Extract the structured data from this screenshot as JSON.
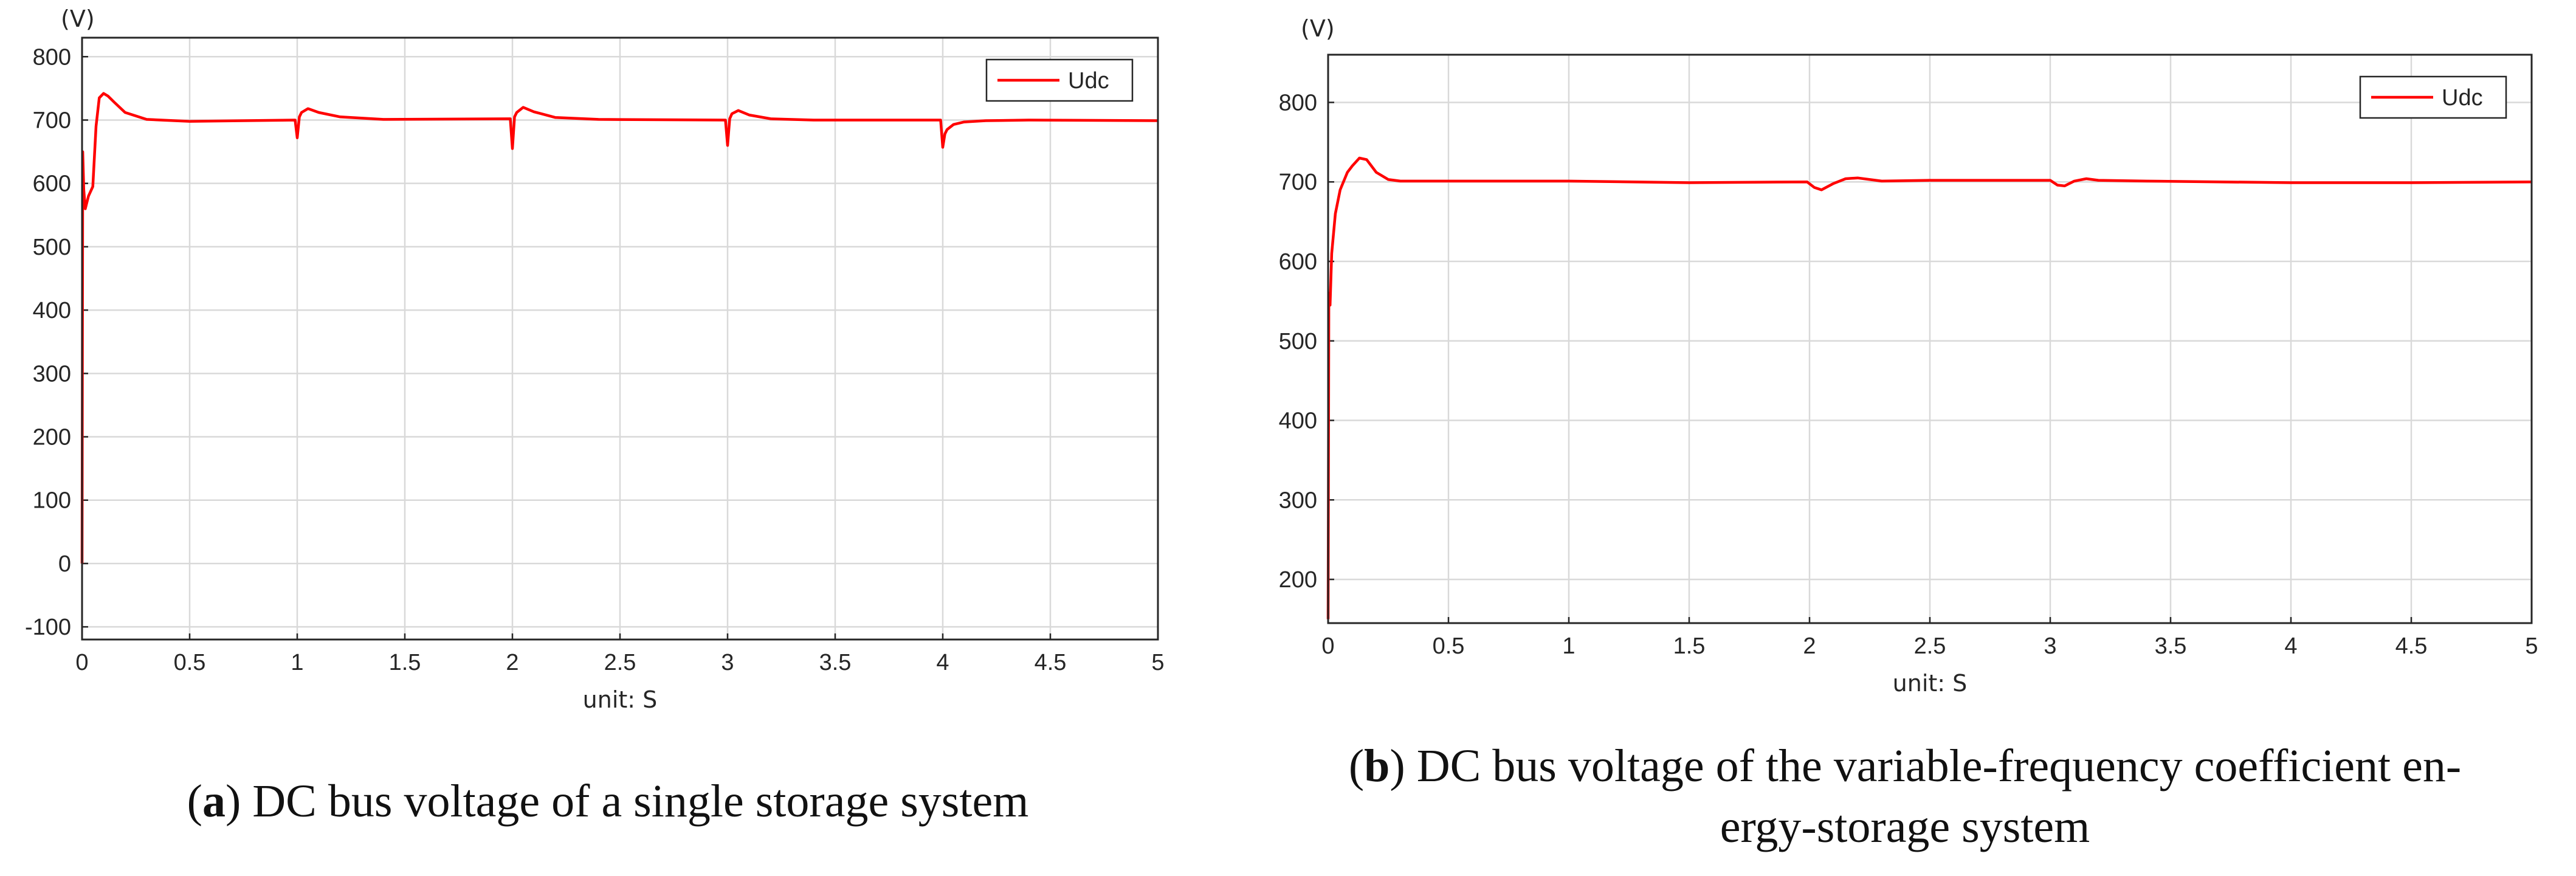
{
  "chart_data": [
    {
      "id": "a",
      "type": "line",
      "caption_letter": "a",
      "caption_text": "DC bus voltage of a single storage system",
      "y_unit_label": "(V)",
      "xlabel": "unit: S",
      "xlim": [
        0,
        5
      ],
      "ylim": [
        -120,
        830
      ],
      "xticks": [
        "0",
        "0.5",
        "1",
        "1.5",
        "2",
        "2.5",
        "3",
        "3.5",
        "4",
        "4.5",
        "5"
      ],
      "yticks": [
        "800",
        "700",
        "600",
        "500",
        "400",
        "300",
        "200",
        "100",
        "0",
        "-100"
      ],
      "grid": true,
      "legend_position": "top-right",
      "series": [
        {
          "name": "Udc",
          "color": "#ff0000",
          "x": [
            0,
            0.003,
            0.008,
            0.015,
            0.03,
            0.05,
            0.065,
            0.08,
            0.1,
            0.12,
            0.15,
            0.2,
            0.3,
            0.5,
            0.99,
            1.0,
            1.01,
            1.02,
            1.05,
            1.1,
            1.2,
            1.4,
            1.99,
            2.0,
            2.01,
            2.02,
            2.05,
            2.1,
            2.2,
            2.4,
            2.99,
            3.0,
            3.01,
            3.02,
            3.05,
            3.1,
            3.2,
            3.4,
            3.99,
            4.0,
            4.01,
            4.02,
            4.05,
            4.1,
            4.2,
            4.4,
            5.0
          ],
          "y": [
            0,
            650,
            590,
            560,
            580,
            595,
            690,
            735,
            742,
            738,
            728,
            712,
            701,
            698,
            700,
            672,
            705,
            712,
            718,
            712,
            705,
            701,
            702,
            655,
            705,
            712,
            720,
            713,
            704,
            701,
            700,
            660,
            702,
            710,
            715,
            708,
            702,
            700,
            700,
            657,
            678,
            685,
            693,
            697,
            699,
            700,
            699
          ]
        }
      ]
    },
    {
      "id": "b",
      "type": "line",
      "caption_letter": "b",
      "caption_text": "DC bus voltage of the variable-frequency coefficient en-",
      "caption_text_2": "ergy-storage system",
      "y_unit_label": "(V)",
      "xlabel": "unit: S",
      "xlim": [
        0,
        5
      ],
      "ylim": [
        145,
        860
      ],
      "xticks": [
        "0",
        "0.5",
        "1",
        "1.5",
        "2",
        "2.5",
        "3",
        "3.5",
        "4",
        "4.5",
        "5"
      ],
      "yticks": [
        "800",
        "700",
        "600",
        "500",
        "400",
        "300",
        "200"
      ],
      "grid": true,
      "legend_position": "top-right",
      "series": [
        {
          "name": "Udc",
          "color": "#ff0000",
          "x": [
            0,
            0.003,
            0.008,
            0.015,
            0.03,
            0.05,
            0.08,
            0.1,
            0.13,
            0.16,
            0.2,
            0.25,
            0.3,
            0.5,
            1.0,
            1.5,
            1.99,
            2.02,
            2.05,
            2.1,
            2.15,
            2.2,
            2.3,
            2.5,
            3.0,
            3.03,
            3.06,
            3.1,
            3.15,
            3.2,
            3.4,
            4.0,
            4.5,
            5.0
          ],
          "y": [
            150,
            560,
            545,
            610,
            660,
            690,
            712,
            720,
            730,
            728,
            712,
            703,
            701,
            701,
            701,
            699,
            700,
            693,
            690,
            698,
            704,
            705,
            701,
            702,
            702,
            696,
            695,
            701,
            704,
            702,
            701,
            699,
            699,
            700
          ]
        }
      ]
    }
  ]
}
